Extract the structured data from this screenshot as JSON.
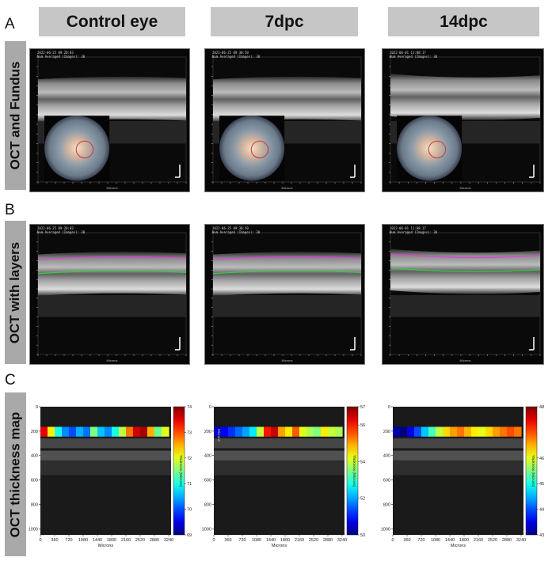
{
  "panel_letters": {
    "a": "A",
    "b": "B",
    "c": "C"
  },
  "columns": [
    {
      "title": "Control eye"
    },
    {
      "title": "7dpc"
    },
    {
      "title": "14dpc"
    }
  ],
  "rows": [
    {
      "label": "OCT and Fundus"
    },
    {
      "label": "OCT with layers"
    },
    {
      "label": "OCT thickness map"
    }
  ],
  "oct_stamps": [
    {
      "date": "2022-06-25 09:20:03",
      "averaged": "Num Averaged (Images): 30"
    },
    {
      "date": "2022-06-25 09:30:50",
      "averaged": "Num Averaged (Images): 30"
    },
    {
      "date": "2022-06-01 11:08:17",
      "averaged": "Num Averaged (Images): 30"
    }
  ],
  "oct_axis_label": "Microns",
  "colors": {
    "layer_magenta": "#e040e0",
    "layer_green": "#30d040",
    "fundus_circle": "#d03030",
    "header_gray": "#c6c6c6",
    "label_gray": "#a9a9a9"
  },
  "chart_data": [
    {
      "type": "heatmap",
      "title": "",
      "xlabel": "Microns",
      "ylabel": "",
      "x_ticks": [
        0,
        360,
        720,
        1080,
        1440,
        1800,
        2160,
        2520,
        2880,
        3240
      ],
      "y_ticks": [
        0,
        200,
        400,
        600,
        800,
        1000
      ],
      "xlim": [
        0,
        3300
      ],
      "ylim": [
        1050,
        0
      ],
      "colorbar_label": "Thickness (Microns)",
      "colorbar_ticks": [
        69,
        70,
        71,
        72,
        73,
        74
      ],
      "colorbar_range": [
        69,
        74
      ],
      "thickness_profile": {
        "x": [
          0,
          180,
          360,
          540,
          720,
          900,
          1080,
          1260,
          1440,
          1620,
          1800,
          1980,
          2160,
          2340,
          2520,
          2700,
          2880,
          3060,
          3240
        ],
        "thickness": [
          73.5,
          72.2,
          71.0,
          70.3,
          70.0,
          70.5,
          70.2,
          71.5,
          70.6,
          70.3,
          71.0,
          71.8,
          72.8,
          73.6,
          73.8,
          72.5,
          71.4,
          72.0,
          73.0
        ]
      }
    },
    {
      "type": "heatmap",
      "title": "",
      "xlabel": "Microns",
      "ylabel": "Microns",
      "x_ticks": [
        0,
        360,
        720,
        1080,
        1440,
        1800,
        2160,
        2520,
        2880,
        3240
      ],
      "y_ticks": [
        0,
        200,
        400,
        600,
        800,
        1000
      ],
      "xlim": [
        0,
        3300
      ],
      "ylim": [
        1050,
        0
      ],
      "colorbar_label": "Thickness (Microns)",
      "colorbar_ticks": [
        50,
        52,
        54,
        56,
        57
      ],
      "colorbar_range": [
        50,
        57
      ],
      "thickness_profile": {
        "x": [
          0,
          180,
          360,
          540,
          720,
          900,
          1080,
          1260,
          1440,
          1620,
          1800,
          1980,
          2160,
          2340,
          2520,
          2700,
          2880,
          3060,
          3240
        ],
        "thickness": [
          50.5,
          50.8,
          51.2,
          51.6,
          52.0,
          52.5,
          54.0,
          56.0,
          56.5,
          55.0,
          54.5,
          55.5,
          54.2,
          53.8,
          53.5,
          54.5,
          54.0,
          53.8,
          54.0
        ]
      }
    },
    {
      "type": "heatmap",
      "title": "",
      "xlabel": "Microns",
      "ylabel": "",
      "x_ticks": [
        0,
        360,
        720,
        1080,
        1440,
        1800,
        2160,
        2520,
        2880,
        3240
      ],
      "y_ticks": [
        0,
        200,
        400,
        600,
        800,
        1000
      ],
      "xlim": [
        0,
        3300
      ],
      "ylim": [
        1050,
        0
      ],
      "colorbar_label": "Thickness (Microns)",
      "colorbar_ticks": [
        43,
        44,
        45,
        46,
        48
      ],
      "colorbar_range": [
        43,
        48
      ],
      "thickness_profile": {
        "x": [
          0,
          180,
          360,
          540,
          720,
          900,
          1080,
          1260,
          1440,
          1620,
          1800,
          1980,
          2160,
          2340,
          2520,
          2700,
          2880,
          3060,
          3240
        ],
        "thickness": [
          43.2,
          43.0,
          43.5,
          44.0,
          44.6,
          45.2,
          45.8,
          46.3,
          46.6,
          46.8,
          46.5,
          46.2,
          46.0,
          46.3,
          46.6,
          46.8,
          47.0,
          46.8,
          46.5
        ]
      }
    }
  ]
}
